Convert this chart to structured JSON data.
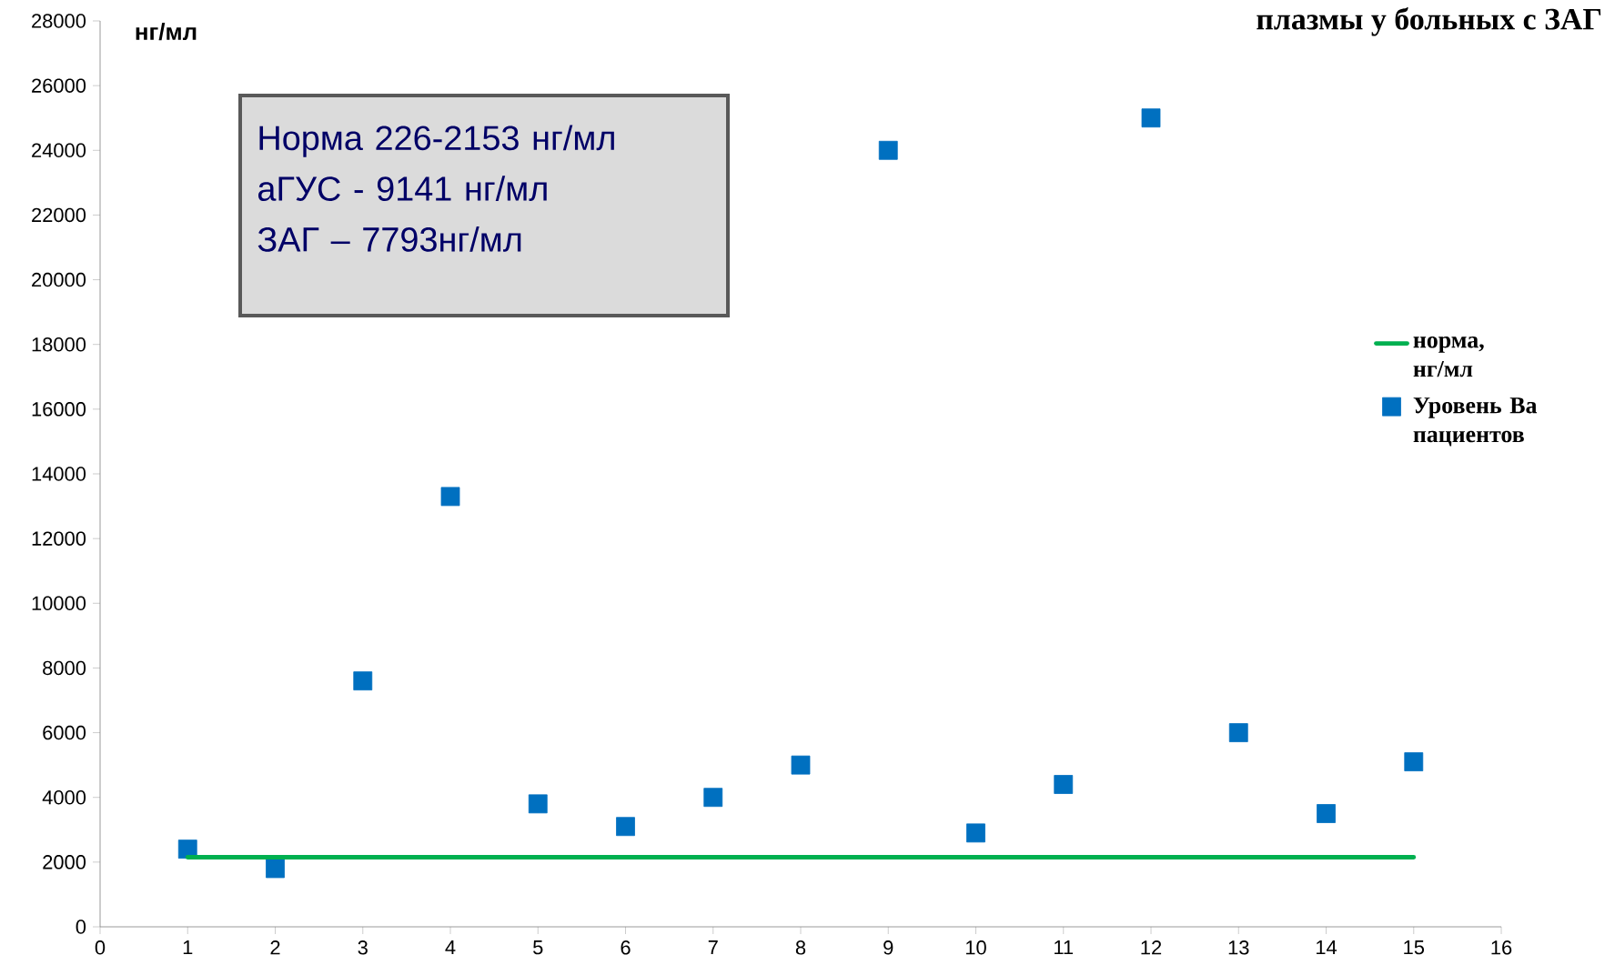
{
  "chart_data": {
    "type": "scatter",
    "title": "плазмы у больных с ЗАГ",
    "ylabel": "нг/мл",
    "annotations": [
      "Норма 226-2153 нг/мл",
      "аГУС  - 9141 нг/мл",
      "ЗАГ – 7793нг/мл"
    ],
    "x": [
      1,
      2,
      3,
      4,
      5,
      6,
      7,
      8,
      9,
      10,
      11,
      12,
      13,
      14,
      15
    ],
    "series": [
      {
        "name": "норма, нг/мл",
        "type": "line",
        "color": "#00b050",
        "x": [
          1,
          15
        ],
        "values": [
          2150,
          2150
        ],
        "marker": "none",
        "line_style": "solid"
      },
      {
        "name": "Уровень Ва пациентов",
        "color": "#0070c0",
        "marker": "square",
        "values": [
          2400,
          1800,
          7600,
          13300,
          3800,
          3100,
          4000,
          5000,
          24000,
          2900,
          4400,
          25000,
          6000,
          3500,
          5100
        ]
      }
    ],
    "xlim": [
      0,
      16
    ],
    "xticks": [
      0,
      1,
      2,
      3,
      4,
      5,
      6,
      7,
      8,
      9,
      10,
      11,
      12,
      13,
      14,
      15,
      16
    ],
    "ylim": [
      0,
      28000
    ],
    "yticks": [
      0,
      2000,
      4000,
      6000,
      8000,
      10000,
      12000,
      14000,
      16000,
      18000,
      20000,
      22000,
      24000,
      26000,
      28000
    ],
    "grid": false,
    "legend": "right"
  }
}
